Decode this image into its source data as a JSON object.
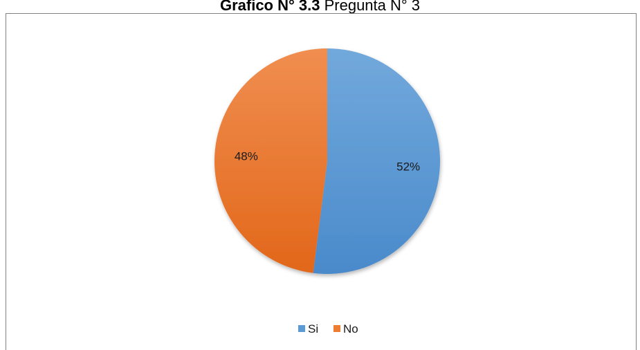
{
  "heading": {
    "bold_part": "Grafico N° 3.3",
    "regular_part": " Pregunta N° 3"
  },
  "chart_data": {
    "type": "pie",
    "title": "Grafico N° 3.3 Pregunta N° 3",
    "categories": [
      "Si",
      "No"
    ],
    "values": [
      52,
      48
    ],
    "data_labels": [
      "52%",
      "48%"
    ],
    "colors": [
      "#5b9bd5",
      "#ed7d31"
    ],
    "legend": {
      "position": "bottom",
      "entries": [
        "Si",
        "No"
      ]
    }
  }
}
